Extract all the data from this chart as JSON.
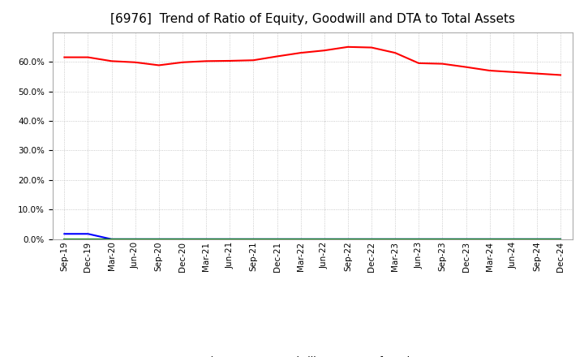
{
  "title": "[6976]  Trend of Ratio of Equity, Goodwill and DTA to Total Assets",
  "x_labels": [
    "Sep-19",
    "Dec-19",
    "Mar-20",
    "Jun-20",
    "Sep-20",
    "Dec-20",
    "Mar-21",
    "Jun-21",
    "Sep-21",
    "Dec-21",
    "Mar-22",
    "Jun-22",
    "Sep-22",
    "Dec-22",
    "Mar-23",
    "Jun-23",
    "Sep-23",
    "Dec-23",
    "Mar-24",
    "Jun-24",
    "Sep-24",
    "Dec-24"
  ],
  "equity": [
    61.5,
    61.5,
    60.2,
    59.8,
    58.8,
    59.8,
    60.2,
    60.3,
    60.5,
    61.8,
    63.0,
    63.8,
    65.0,
    64.8,
    63.0,
    59.5,
    59.3,
    58.2,
    57.0,
    56.5,
    56.0,
    55.5
  ],
  "goodwill": [
    1.8,
    1.8,
    0.0,
    0.0,
    0.0,
    0.0,
    0.0,
    0.0,
    0.0,
    0.0,
    0.0,
    0.0,
    0.0,
    0.0,
    0.0,
    0.0,
    0.0,
    0.0,
    0.0,
    0.0,
    0.0,
    0.0
  ],
  "dta": [
    0.0,
    0.0,
    0.0,
    0.0,
    0.0,
    0.0,
    0.0,
    0.0,
    0.0,
    0.0,
    0.0,
    0.0,
    0.0,
    0.0,
    0.0,
    0.0,
    0.0,
    0.0,
    0.0,
    0.0,
    0.0,
    0.0
  ],
  "equity_color": "#FF0000",
  "goodwill_color": "#0000FF",
  "dta_color": "#008000",
  "ylim": [
    0,
    70
  ],
  "yticks": [
    0,
    10,
    20,
    30,
    40,
    50,
    60
  ],
  "background_color": "#FFFFFF",
  "plot_bg_color": "#FFFFFF",
  "grid_color": "#AAAAAA",
  "title_fontsize": 11,
  "tick_fontsize": 7.5,
  "legend_fontsize": 9
}
